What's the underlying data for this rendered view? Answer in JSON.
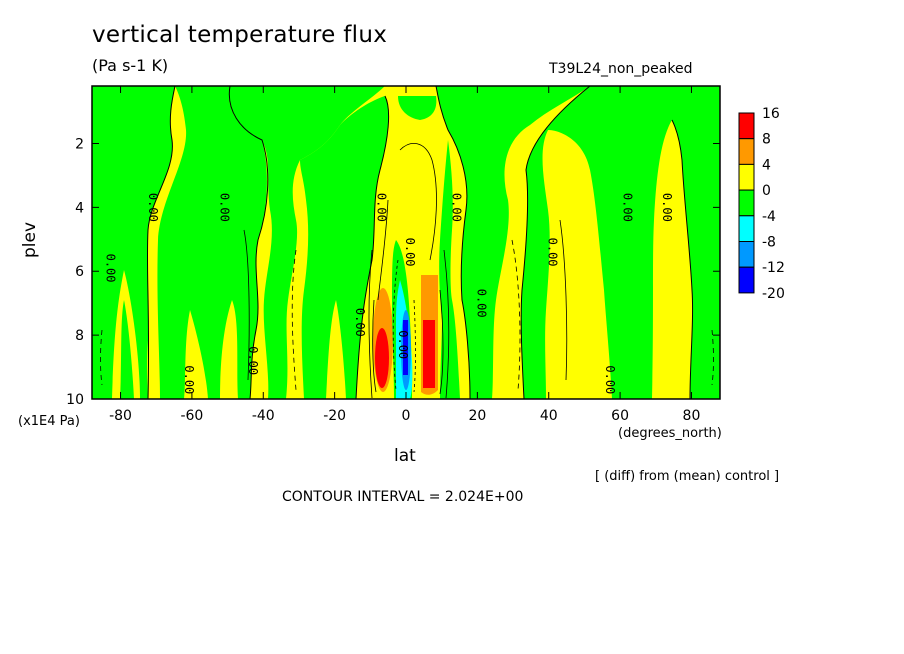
{
  "chart_data": {
    "type": "heatmap",
    "subtype": "filled-contour",
    "title": "vertical temperature flux",
    "units": "(Pa s-1 K)",
    "experiment": "T39L24_non_peaked",
    "xlabel": "lat",
    "x_unit": "(degrees_north)",
    "ylabel": "plev",
    "y_unit": "(x1E4 Pa)",
    "xlim": [
      -88,
      88
    ],
    "ylim": [
      10,
      0.2
    ],
    "y_reversed": true,
    "x_ticks": [
      -80,
      -60,
      -40,
      -20,
      0,
      20,
      40,
      60,
      80
    ],
    "y_ticks": [
      2,
      4,
      6,
      8,
      10
    ],
    "contour_interval_text": "CONTOUR INTERVAL = 2.024E+00",
    "diff_note": "[ (diff) from (mean) control ]",
    "colorbar": {
      "levels": [
        "16",
        "8",
        "4",
        "0",
        "-4",
        "-8",
        "-12",
        "-20"
      ],
      "colors": [
        "#ff0000",
        "#ff9900",
        "#ffff00",
        "#00ff00",
        "#00ffff",
        "#0099ff",
        "#0000ff"
      ]
    },
    "contour_label": "0.00",
    "field_summary": [
      {
        "lat": -6,
        "plev": 8.5,
        "value": 16
      },
      {
        "lat": 6,
        "plev": 8.3,
        "value": 16
      },
      {
        "lat": -1,
        "plev": 8.3,
        "value": -20
      },
      {
        "lat": 1,
        "plev": 8.6,
        "value": -12
      },
      {
        "lat": -5,
        "plev": 7.5,
        "value": 8
      },
      {
        "lat": 6,
        "plev": 6.5,
        "value": 8
      }
    ]
  }
}
